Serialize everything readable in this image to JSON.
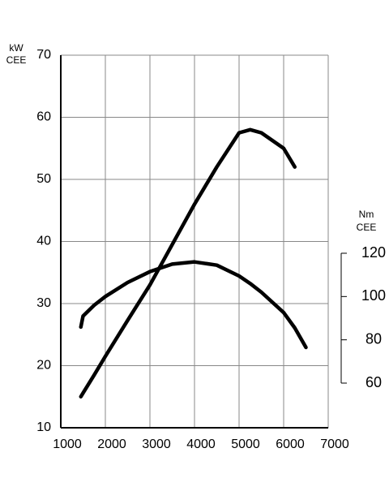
{
  "chart_data": {
    "type": "line",
    "y_label": [
      "kW",
      "CEE"
    ],
    "y2_label": [
      "Nm",
      "CEE"
    ],
    "x": [
      1450,
      1500,
      1750,
      2000,
      2500,
      3000,
      3500,
      4000,
      4500,
      5000,
      5250,
      5500,
      6000,
      6250,
      6500
    ],
    "series": [
      {
        "color": "#000000",
        "values": [
          15,
          15.6,
          18.5,
          21.5,
          27.3,
          33,
          39.5,
          46,
          52,
          57.5,
          58,
          57.5,
          55,
          52,
          null
        ]
      },
      {
        "color": "#000000",
        "axis": "y2",
        "values": [
          85.9,
          91,
          96,
          100,
          106.5,
          111.5,
          115,
          116,
          114.5,
          109.5,
          106,
          102,
          92.6,
          85.5,
          76.5
        ]
      }
    ],
    "xlim": [
      1000,
      7000
    ],
    "xticks": [
      1000,
      2000,
      3000,
      4000,
      5000,
      6000,
      7000
    ],
    "ylim": [
      10,
      70
    ],
    "yticks": [
      10,
      20,
      30,
      40,
      50,
      60,
      70
    ],
    "y2lim": [
      60,
      120
    ],
    "y2ticks": [
      60,
      80,
      100,
      120
    ],
    "grid": true
  }
}
